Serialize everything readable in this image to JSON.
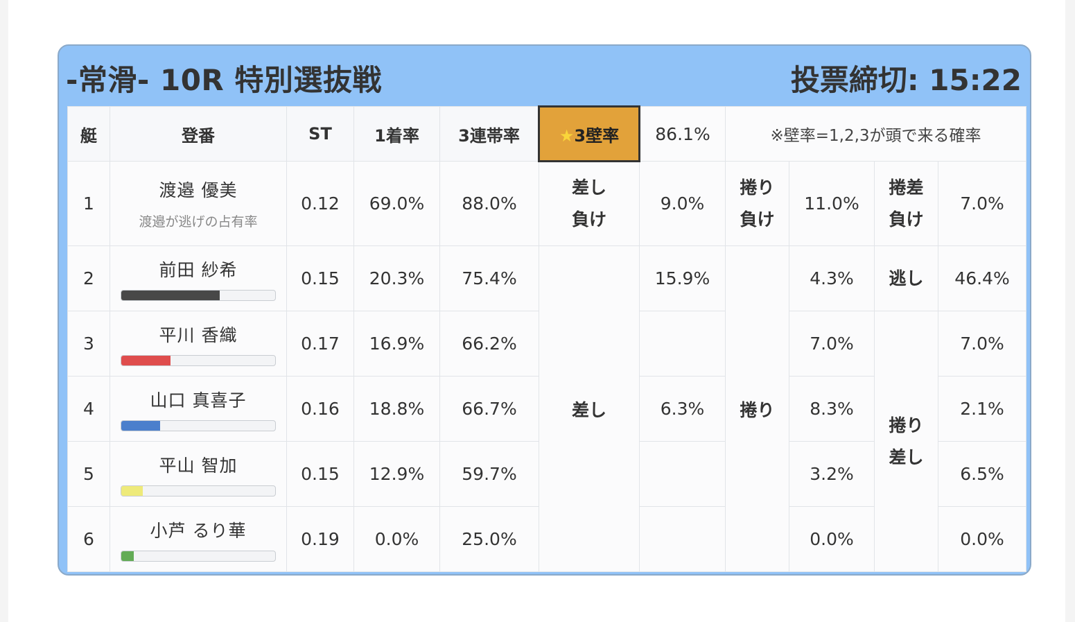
{
  "header": {
    "title": "-常滑- 10R 特別選抜戦",
    "deadline": "投票締切: 15:22"
  },
  "columns": {
    "boat": "艇",
    "racer": "登番",
    "st": "ST",
    "first_rate": "1着率",
    "trio_rate": "3連帯率",
    "wall_label": "3壁率",
    "wall_star": "★",
    "wall_value": "86.1%",
    "note": "※壁率=1,2,3が頭で来る確率"
  },
  "rows": [
    {
      "boat": "1",
      "name": "渡邉 優美",
      "sub": "渡邉が逃げの占有率",
      "st": "0.12",
      "first": "69.0%",
      "trio": "88.0%"
    },
    {
      "boat": "2",
      "name": "前田 紗希",
      "bar_pct": 64,
      "bar_color": "#484848",
      "st": "0.15",
      "first": "20.3%",
      "trio": "75.4%"
    },
    {
      "boat": "3",
      "name": "平川 香織",
      "bar_pct": 32,
      "bar_color": "#df4d4d",
      "st": "0.17",
      "first": "16.9%",
      "trio": "66.2%"
    },
    {
      "boat": "4",
      "name": "山口 真喜子",
      "bar_pct": 25,
      "bar_color": "#4b7fcc",
      "st": "0.16",
      "first": "18.8%",
      "trio": "66.7%"
    },
    {
      "boat": "5",
      "name": "平山 智加",
      "bar_pct": 14,
      "bar_color": "#eeea7a",
      "st": "0.15",
      "first": "12.9%",
      "trio": "59.7%"
    },
    {
      "boat": "6",
      "name": "小芦 るり華",
      "bar_pct": 8,
      "bar_color": "#62ab55",
      "st": "0.19",
      "first": "0.0%",
      "trio": "25.0%"
    }
  ],
  "outcomes": {
    "sashi_make": {
      "label1": "差し",
      "label2": "負け",
      "value": "9.0%"
    },
    "makuri_make": {
      "label1": "捲り",
      "label2": "負け",
      "value": "11.0%"
    },
    "makurizashi_make": {
      "label1": "捲差",
      "label2": "負け",
      "value": "7.0%"
    },
    "sashi": {
      "label": "差し",
      "v2": "15.9%",
      "v4": "6.3%"
    },
    "makuri": {
      "label": "捲り",
      "v2": "4.3%",
      "v3": "7.0%",
      "v4": "8.3%",
      "v5": "3.2%",
      "v6": "0.0%"
    },
    "nige": {
      "label": "逃し",
      "value": "46.4%"
    },
    "makurizashi": {
      "label1": "捲り",
      "label2": "差し",
      "v3": "7.0%",
      "v4": "2.1%",
      "v5": "6.5%",
      "v6": "0.0%"
    }
  }
}
